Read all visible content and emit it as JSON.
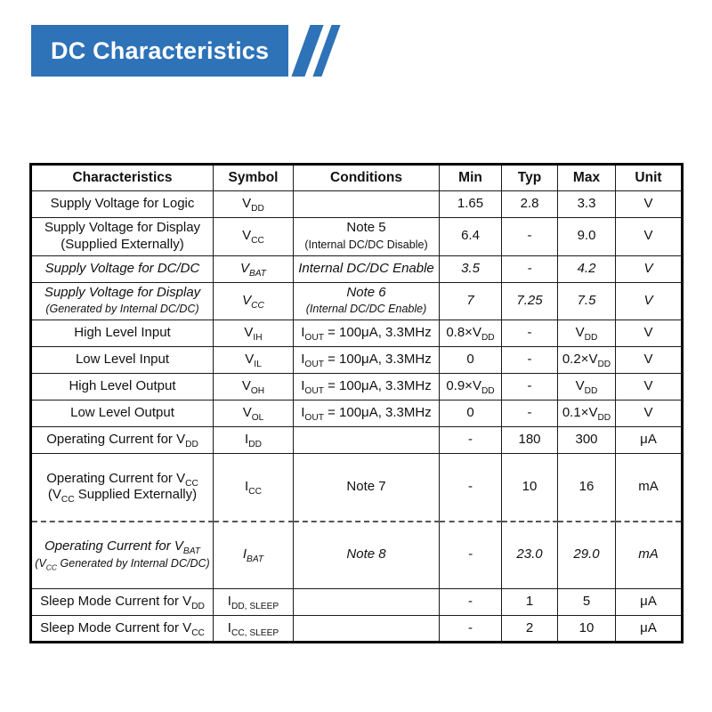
{
  "banner": {
    "title": "DC Characteristics",
    "accent_color": "#2e72b8"
  },
  "table": {
    "headers": [
      "Characteristics",
      "Symbol",
      "Conditions",
      "Min",
      "Typ",
      "Max",
      "Unit"
    ],
    "column_keys": [
      "characteristics",
      "symbol",
      "conditions",
      "min",
      "typ",
      "max",
      "unit"
    ],
    "rows": [
      {
        "characteristics": "Supply Voltage for Logic",
        "symbol": "V~DD~",
        "conditions": "",
        "min": "1.65",
        "typ": "2.8",
        "max": "3.3",
        "unit": "V"
      },
      {
        "characteristics": "Supply Voltage for Display\n(Supplied Externally)",
        "symbol": "V~CC~",
        "conditions": "Note 5\n^(Internal DC/DC Disable)^",
        "min": "6.4",
        "typ": "-",
        "max": "9.0",
        "unit": "V"
      },
      {
        "characteristics": "Supply Voltage for DC/DC",
        "symbol": "V~BAT~",
        "conditions": "Internal DC/DC Enable",
        "min": "3.5",
        "typ": "-",
        "max": "4.2",
        "unit": "V",
        "italic": true
      },
      {
        "characteristics": "Supply Voltage for Display\n^(Generated by Internal DC/DC)^",
        "symbol": "V~CC~",
        "conditions": "Note 6\n^(Internal DC/DC Enable)^",
        "min": "7",
        "typ": "7.25",
        "max": "7.5",
        "unit": "V",
        "italic": true
      },
      {
        "characteristics": "High Level Input",
        "symbol": "V~IH~",
        "conditions": "I~OUT~ = 100μA, 3.3MHz",
        "min": "0.8×V~DD~",
        "typ": "-",
        "max": "V~DD~",
        "unit": "V"
      },
      {
        "characteristics": "Low Level Input",
        "symbol": "V~IL~",
        "conditions": "I~OUT~ = 100μA, 3.3MHz",
        "min": "0",
        "typ": "-",
        "max": "0.2×V~DD~",
        "unit": "V"
      },
      {
        "characteristics": "High Level Output",
        "symbol": "V~OH~",
        "conditions": "I~OUT~ = 100μA, 3.3MHz",
        "min": "0.9×V~DD~",
        "typ": "-",
        "max": "V~DD~",
        "unit": "V"
      },
      {
        "characteristics": "Low Level Output",
        "symbol": "V~OL~",
        "conditions": "I~OUT~ = 100μA, 3.3MHz",
        "min": "0",
        "typ": "-",
        "max": "0.1×V~DD~",
        "unit": "V"
      },
      {
        "characteristics": "Operating Current for V~DD~",
        "symbol": "I~DD~",
        "conditions": "",
        "min": "-",
        "typ": "180",
        "max": "300",
        "unit": "μA"
      },
      {
        "characteristics": "Operating Current for V~CC~\n(V~CC~ Supplied Externally)",
        "symbol": "I~CC~",
        "conditions": "Note 7",
        "min": "-",
        "typ": "10",
        "max": "16",
        "unit": "mA",
        "tall": true
      },
      {
        "characteristics": "Operating Current for V~BAT~\n^(V~CC~ Generated by Internal DC/DC)^",
        "symbol": "I~BAT~",
        "conditions": "Note 8",
        "min": "-",
        "typ": "23.0",
        "max": "29.0",
        "unit": "mA",
        "italic": true,
        "tall": true,
        "dashed_top": true
      },
      {
        "characteristics": "Sleep Mode Current for V~DD~",
        "symbol": "I~DD, SLEEP~",
        "conditions": "",
        "min": "-",
        "typ": "1",
        "max": "5",
        "unit": "μA"
      },
      {
        "characteristics": "Sleep Mode Current for V~CC~",
        "symbol": "I~CC, SLEEP~",
        "conditions": "",
        "min": "-",
        "typ": "2",
        "max": "10",
        "unit": "μA"
      }
    ]
  }
}
